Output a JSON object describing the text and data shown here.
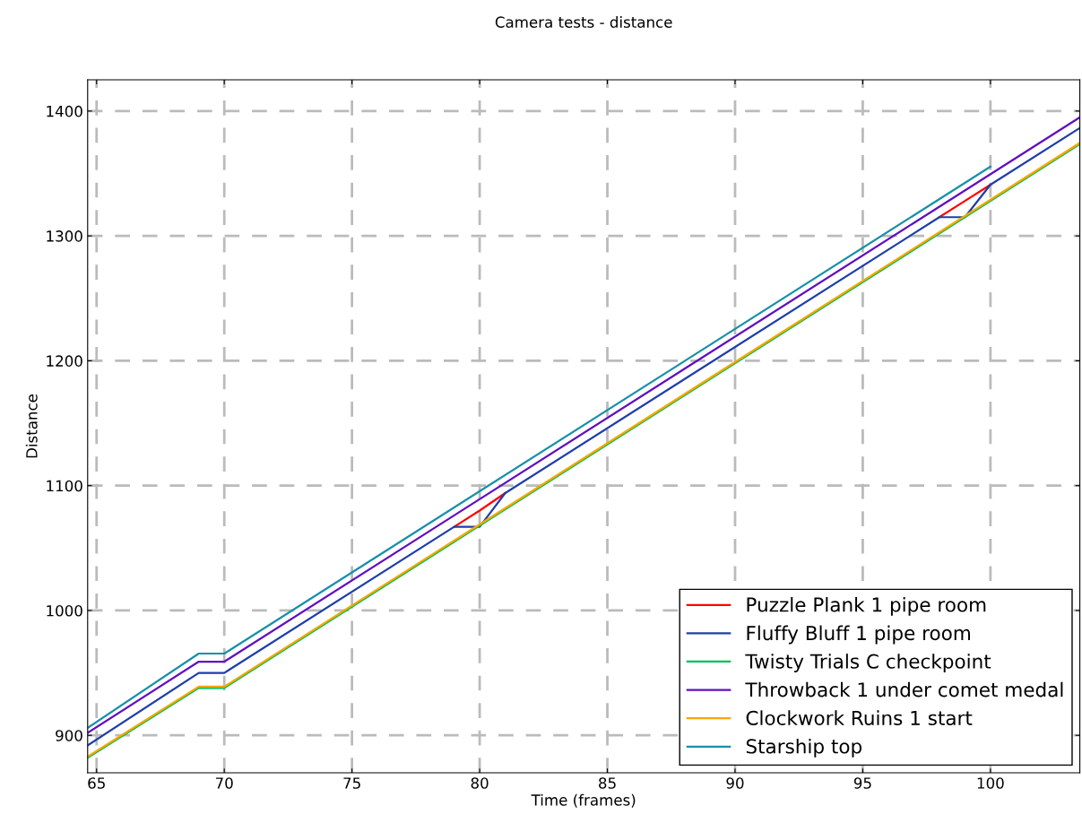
{
  "chart_data": {
    "type": "line",
    "title": "Camera tests - distance",
    "xlabel": "Time (frames)",
    "ylabel": "Distance",
    "xlim": [
      64.65,
      103.5
    ],
    "ylim": [
      870,
      1425
    ],
    "xticks": [
      65,
      70,
      75,
      80,
      85,
      90,
      95,
      100
    ],
    "yticks": [
      900,
      1000,
      1100,
      1200,
      1300,
      1400
    ],
    "grid": true,
    "legend": "bottom right",
    "line_style": "solid",
    "marker": "none",
    "series": [
      {
        "name": "Puzzle Plank 1 pipe room",
        "color": "#ff0000",
        "x": [
          79,
          80,
          81,
          89,
          98,
          99,
          100
        ],
        "values": [
          1067,
          1080,
          1094,
          null,
          1315,
          1328,
          1341
        ]
      },
      {
        "name": "Fluffy Bluff 1 pipe room",
        "color": "#1f3fa8",
        "x": [
          64.65,
          69,
          70,
          79,
          80,
          81,
          98,
          99,
          100,
          103.5
        ],
        "values": [
          892,
          950,
          950,
          1067,
          1067,
          1094,
          1315,
          1315,
          1341,
          1386.5
        ]
      },
      {
        "name": "Twisty Trials C checkpoint",
        "color": "#00c050",
        "x": [
          64.65,
          69,
          70,
          103.5
        ],
        "values": [
          882,
          938,
          938,
          1373.5
        ]
      },
      {
        "name": "Throwback 1 under comet medal",
        "color": "#6010c0",
        "x": [
          64.65,
          69,
          70,
          103.5
        ],
        "values": [
          902,
          959,
          959,
          1395
        ]
      },
      {
        "name": "Clockwork Ruins 1 start",
        "color": "#ffa500",
        "x": [
          64.65,
          69,
          70,
          103.5
        ],
        "values": [
          883,
          939,
          939,
          1374.5
        ]
      },
      {
        "name": "Starship top",
        "color": "#1890a8",
        "x": [
          64.65,
          69,
          70,
          100
        ],
        "values": [
          906,
          965.5,
          965.5,
          1355.5
        ]
      }
    ]
  }
}
